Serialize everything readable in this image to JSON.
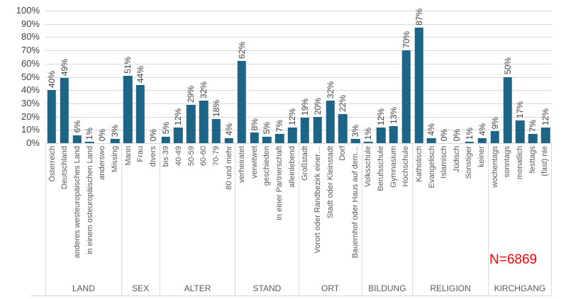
{
  "chart_data": {
    "type": "bar",
    "title": "",
    "xlabel": "",
    "ylabel": "",
    "ylim": [
      0,
      100
    ],
    "grid": true,
    "legend": "none",
    "ytick_labels": [
      "100%",
      "90%",
      "80%",
      "70%",
      "60%",
      "50%",
      "40%",
      "30%",
      "20%",
      "10%",
      "0%"
    ],
    "value_suffix": "%",
    "bar_color": "#1c6587",
    "gridline_color": "#d9d9d9",
    "groups": [
      {
        "label": "LAND",
        "categories": [
          "Österreich",
          "Deutschland",
          "anderes westeuropäisches Land",
          "in einem osteuropäischen Land",
          "anderswo",
          "Missing"
        ],
        "values": [
          40,
          49,
          6,
          1,
          0,
          3
        ]
      },
      {
        "label": "SEX",
        "categories": [
          "Mann",
          "Frau",
          "divers"
        ],
        "values": [
          51,
          44,
          0
        ]
      },
      {
        "label": "ALTER",
        "categories": [
          "bis 39",
          "40-49",
          "50-59",
          "60-60",
          "70-79",
          "80 und mehr"
        ],
        "values": [
          5,
          12,
          29,
          32,
          18,
          4
        ]
      },
      {
        "label": "STAND",
        "categories": [
          "verheiratet",
          "verwitwet",
          "geschieden",
          "in einer Partnerschaft",
          "alleinlebend"
        ],
        "values": [
          62,
          8,
          5,
          7,
          12
        ]
      },
      {
        "label": "ORT",
        "categories": [
          "Großstadt",
          "Vorort oder Randbezirk einer…",
          "Stadt oder Kleinstadt",
          "Dorf",
          "Bauernhof oder Haus auf dem…"
        ],
        "values": [
          19,
          20,
          32,
          22,
          3
        ]
      },
      {
        "label": "BILDUNG",
        "categories": [
          "Volksschule",
          "Berufsschule",
          "Gymnasium",
          "Hochschule"
        ],
        "values": [
          1,
          12,
          13,
          70
        ]
      },
      {
        "label": "RELIGION",
        "categories": [
          "Katholisch",
          "Evangelisch",
          "Islamisch",
          "Jüdisch",
          "Sonstiger",
          "keiner"
        ],
        "values": [
          87,
          4,
          0,
          0,
          1,
          4
        ]
      },
      {
        "label": "KIRCHGANG",
        "categories": [
          "wochentags",
          "sonntags",
          "monatlich",
          "festtags",
          "(fast) nie"
        ],
        "values": [
          9,
          50,
          17,
          7,
          12
        ]
      }
    ],
    "annotation": {
      "text": "N=6869",
      "color": "#ff0000"
    }
  }
}
